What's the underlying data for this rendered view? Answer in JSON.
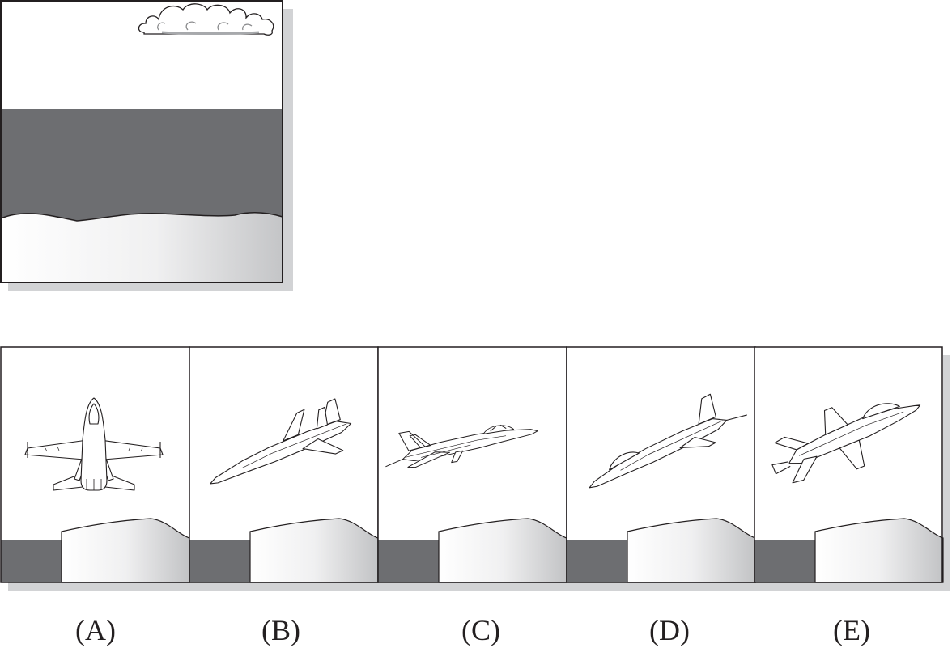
{
  "scene": {
    "colors": {
      "sky": "#ffffff",
      "sea": "#6d6e71",
      "sand_light": "#ffffff",
      "sand_dark": "#c8c9cb",
      "shadow": "#d2d3d5",
      "outline": "#231f20"
    },
    "icons": [
      "cloud-icon",
      "fighter-jet-icon"
    ]
  },
  "options": [
    {
      "label": "(A)",
      "view": "top-down"
    },
    {
      "label": "(B)",
      "view": "side, banking up-right"
    },
    {
      "label": "(C)",
      "view": "side, level flight right"
    },
    {
      "label": "(D)",
      "view": "side, climbing right"
    },
    {
      "label": "(E)",
      "view": "three-quarter, climbing right"
    }
  ]
}
